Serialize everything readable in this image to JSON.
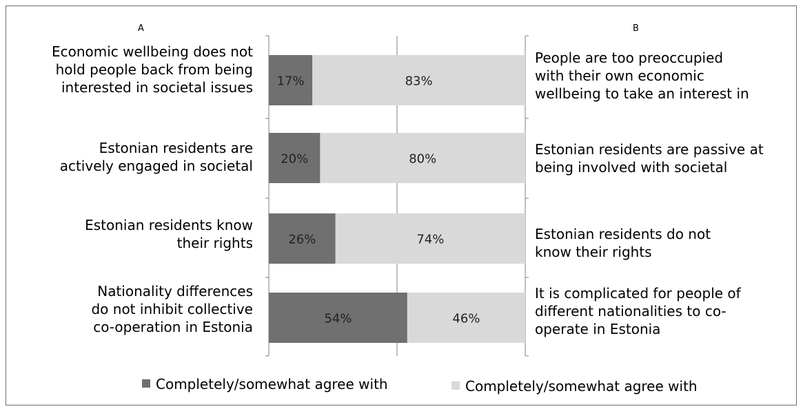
{
  "chart_data": {
    "type": "bar",
    "stacked": true,
    "orientation": "horizontal",
    "percent_stacked": true,
    "column_headers": [
      "A",
      "B"
    ],
    "categories": [
      {
        "a": "Economic wellbeing does not\nhold people back from being\ninterested in societal issues",
        "b": "People are too preoccupied\nwith their own economic\nwellbeing to take an interest in"
      },
      {
        "a": "Estonian residents are\nactively engaged in societal",
        "b": "Estonian residents are passive at\nbeing involved with societal"
      },
      {
        "a": "Estonian residents know\ntheir rights",
        "b": "Estonian residents do not\nknow their rights"
      },
      {
        "a": "Nationality differences\ndo not inhibit collective\nco-operation in Estonia",
        "b": "It is complicated for people of\ndifferent nationalities to co-\noperate in Estonia"
      }
    ],
    "series": [
      {
        "name": "Completely/somewhat agree with",
        "color": "#707070",
        "values": [
          17,
          20,
          26,
          54
        ],
        "labels": [
          "17%",
          "20%",
          "26%",
          "54%"
        ]
      },
      {
        "name": "Completely/somewhat agree with",
        "color": "#d9d9d9",
        "values": [
          83,
          80,
          74,
          46
        ],
        "labels": [
          "83%",
          "80%",
          "74%",
          "46%"
        ]
      }
    ],
    "xlim": [
      0,
      100
    ],
    "grid": "vertical line at 50%",
    "legend_position": "bottom"
  }
}
